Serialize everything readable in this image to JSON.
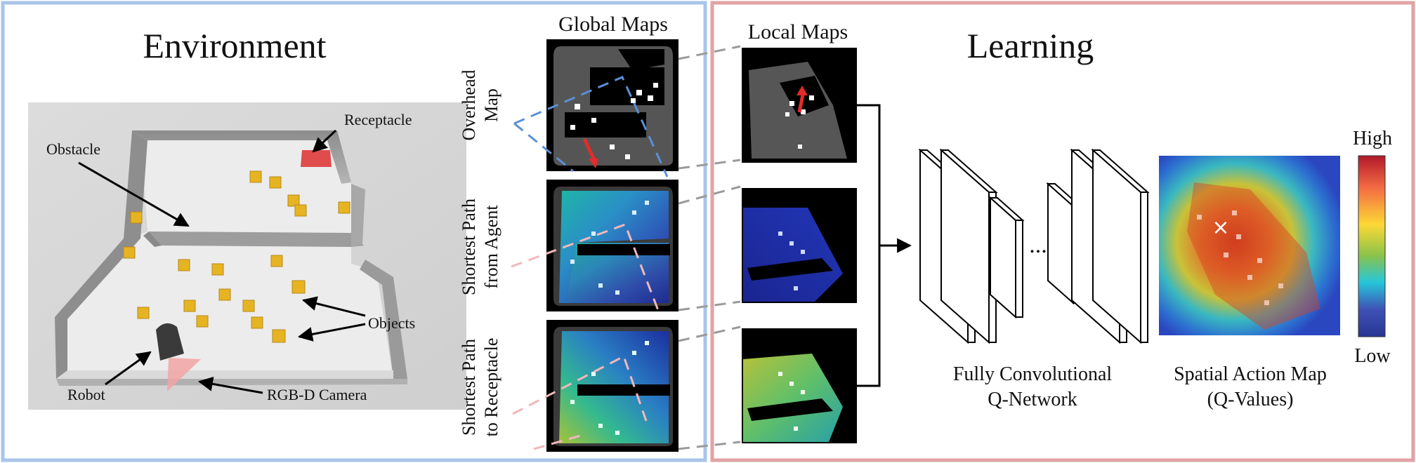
{
  "sections": {
    "environment": {
      "title": "Environment",
      "border_color": "#a8c4ea"
    },
    "learning": {
      "title": "Learning",
      "border_color": "#e2a2a4"
    }
  },
  "global_maps": {
    "title": "Global Maps",
    "rows": [
      {
        "label_line1": "Overhead",
        "label_line2": "Map",
        "link_color": "#5b8fd6"
      },
      {
        "label_line1": "Shortest Path",
        "label_line2": "from Agent",
        "link_color": "#f0b8bd"
      },
      {
        "label_line1": "Shortest Path",
        "label_line2": "to Receptacle",
        "link_color": "#f0b8bd"
      }
    ]
  },
  "local_maps": {
    "title": "Local Maps"
  },
  "scene_labels": {
    "receptacle": "Receptacle",
    "obstacle": "Obstacle",
    "objects": "Objects",
    "robot": "Robot",
    "camera": "RGB-D Camera"
  },
  "network": {
    "label_line1": "Fully Convolutional",
    "label_line2": "Q-Network",
    "ellipsis": "..."
  },
  "action_map": {
    "label_line1": "Spatial Action Map",
    "label_line2": "(Q-Values)",
    "marker": "×"
  },
  "colorbar": {
    "high": "High",
    "low": "Low",
    "colors": [
      "#b2182b",
      "#f46d43",
      "#fdd835",
      "#8bc34a",
      "#26c6da",
      "#3f51b5",
      "#283593"
    ]
  },
  "colors": {
    "receptacle": "#e04b4b",
    "object": "#e6b422",
    "pad_wall": "#9a9a9a",
    "floor": "#ececec"
  }
}
